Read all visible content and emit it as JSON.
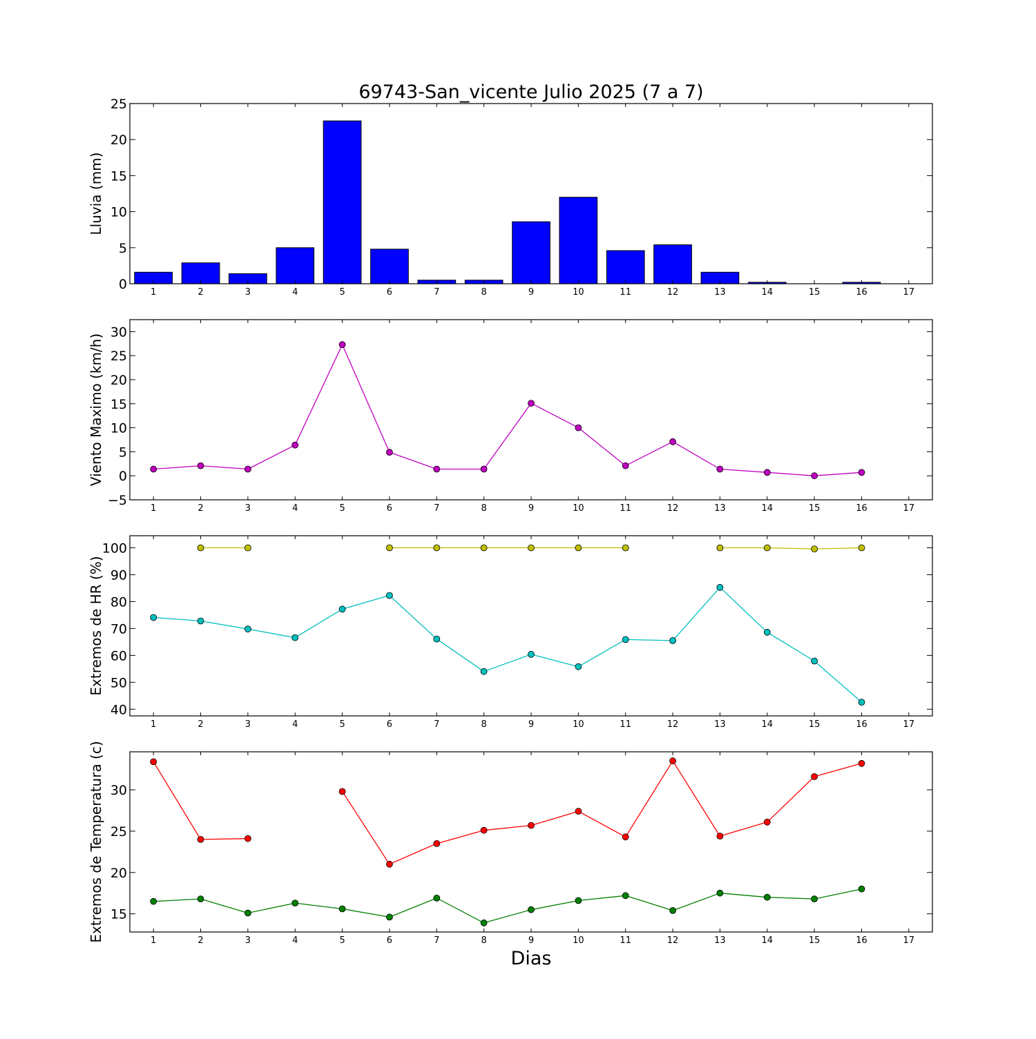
{
  "title": "69743-San_vicente Julio 2025  (7 a 7)",
  "xlabel": "Dias",
  "colors": {
    "rain": "#0000ff",
    "wind": "#bf00bf",
    "hr_max": "#bfbf00",
    "hr_min": "#00bfbf",
    "temp_max": "#ff0000",
    "temp_min": "#008000"
  },
  "chart_data": [
    {
      "type": "bar",
      "ylabel": "Lluvia (mm)",
      "x": [
        1,
        2,
        3,
        4,
        5,
        6,
        7,
        8,
        9,
        10,
        11,
        12,
        13,
        14,
        15,
        16
      ],
      "values": [
        1.6,
        2.9,
        1.4,
        5.0,
        22.6,
        4.8,
        0.5,
        0.5,
        8.6,
        12.0,
        4.6,
        5.4,
        1.6,
        0.2,
        0.0,
        0.2
      ],
      "ylim": [
        0,
        25
      ],
      "yticks": [
        0,
        5,
        10,
        15,
        20,
        25
      ],
      "xticks": [
        1,
        2,
        3,
        4,
        5,
        6,
        7,
        8,
        9,
        10,
        11,
        12,
        13,
        14,
        15,
        16,
        17
      ],
      "color": "#0000ff"
    },
    {
      "type": "line",
      "ylabel": "Viento Maximo (km/h)",
      "x": [
        1,
        2,
        3,
        4,
        5,
        6,
        7,
        8,
        9,
        10,
        11,
        12,
        13,
        14,
        15,
        16
      ],
      "series": [
        {
          "values": [
            1.4,
            2.1,
            1.4,
            6.4,
            27.3,
            4.9,
            1.4,
            1.4,
            15.1,
            10.0,
            2.1,
            7.1,
            1.4,
            0.7,
            0.0,
            0.7
          ],
          "color": "#bf00bf"
        }
      ],
      "ylim": [
        -5,
        32.5
      ],
      "yticks": [
        -5,
        0,
        5,
        10,
        15,
        20,
        25,
        30
      ],
      "xticks": [
        1,
        2,
        3,
        4,
        5,
        6,
        7,
        8,
        9,
        10,
        11,
        12,
        13,
        14,
        15,
        16,
        17
      ]
    },
    {
      "type": "line",
      "ylabel": "Extremos de HR (%)",
      "x": [
        1,
        2,
        3,
        4,
        5,
        6,
        7,
        8,
        9,
        10,
        11,
        12,
        13,
        14,
        15,
        16
      ],
      "series": [
        {
          "values": [
            null,
            100,
            100,
            null,
            null,
            100,
            100,
            100,
            100,
            100,
            100,
            null,
            100,
            100,
            99.6,
            100
          ],
          "color": "#bfbf00"
        },
        {
          "values": [
            74.1,
            72.8,
            69.8,
            66.6,
            77.2,
            82.3,
            66.1,
            54.0,
            60.4,
            55.8,
            65.9,
            65.5,
            85.3,
            68.6,
            57.9,
            42.6
          ],
          "color": "#00bfbf"
        }
      ],
      "ylim": [
        37.5,
        104.5
      ],
      "yticks": [
        40,
        50,
        60,
        70,
        80,
        90,
        100
      ],
      "xticks": [
        1,
        2,
        3,
        4,
        5,
        6,
        7,
        8,
        9,
        10,
        11,
        12,
        13,
        14,
        15,
        16,
        17
      ]
    },
    {
      "type": "line",
      "ylabel": "Extremos de Temperatura (c)",
      "x": [
        1,
        2,
        3,
        4,
        5,
        6,
        7,
        8,
        9,
        10,
        11,
        12,
        13,
        14,
        15,
        16
      ],
      "series": [
        {
          "values": [
            33.4,
            24.0,
            24.1,
            null,
            29.8,
            21.0,
            23.5,
            25.1,
            25.7,
            27.4,
            24.3,
            33.5,
            24.4,
            26.1,
            31.6,
            33.2
          ],
          "color": "#ff0000"
        },
        {
          "values": [
            16.5,
            16.8,
            15.1,
            16.3,
            15.6,
            14.6,
            16.9,
            13.9,
            15.5,
            16.6,
            17.2,
            15.4,
            17.5,
            17.0,
            16.8,
            18.0
          ],
          "color": "#008000"
        }
      ],
      "ylim": [
        12.8,
        34.6
      ],
      "yticks": [
        15,
        20,
        25,
        30
      ],
      "xticks": [
        1,
        2,
        3,
        4,
        5,
        6,
        7,
        8,
        9,
        10,
        11,
        12,
        13,
        14,
        15,
        16,
        17
      ]
    }
  ]
}
